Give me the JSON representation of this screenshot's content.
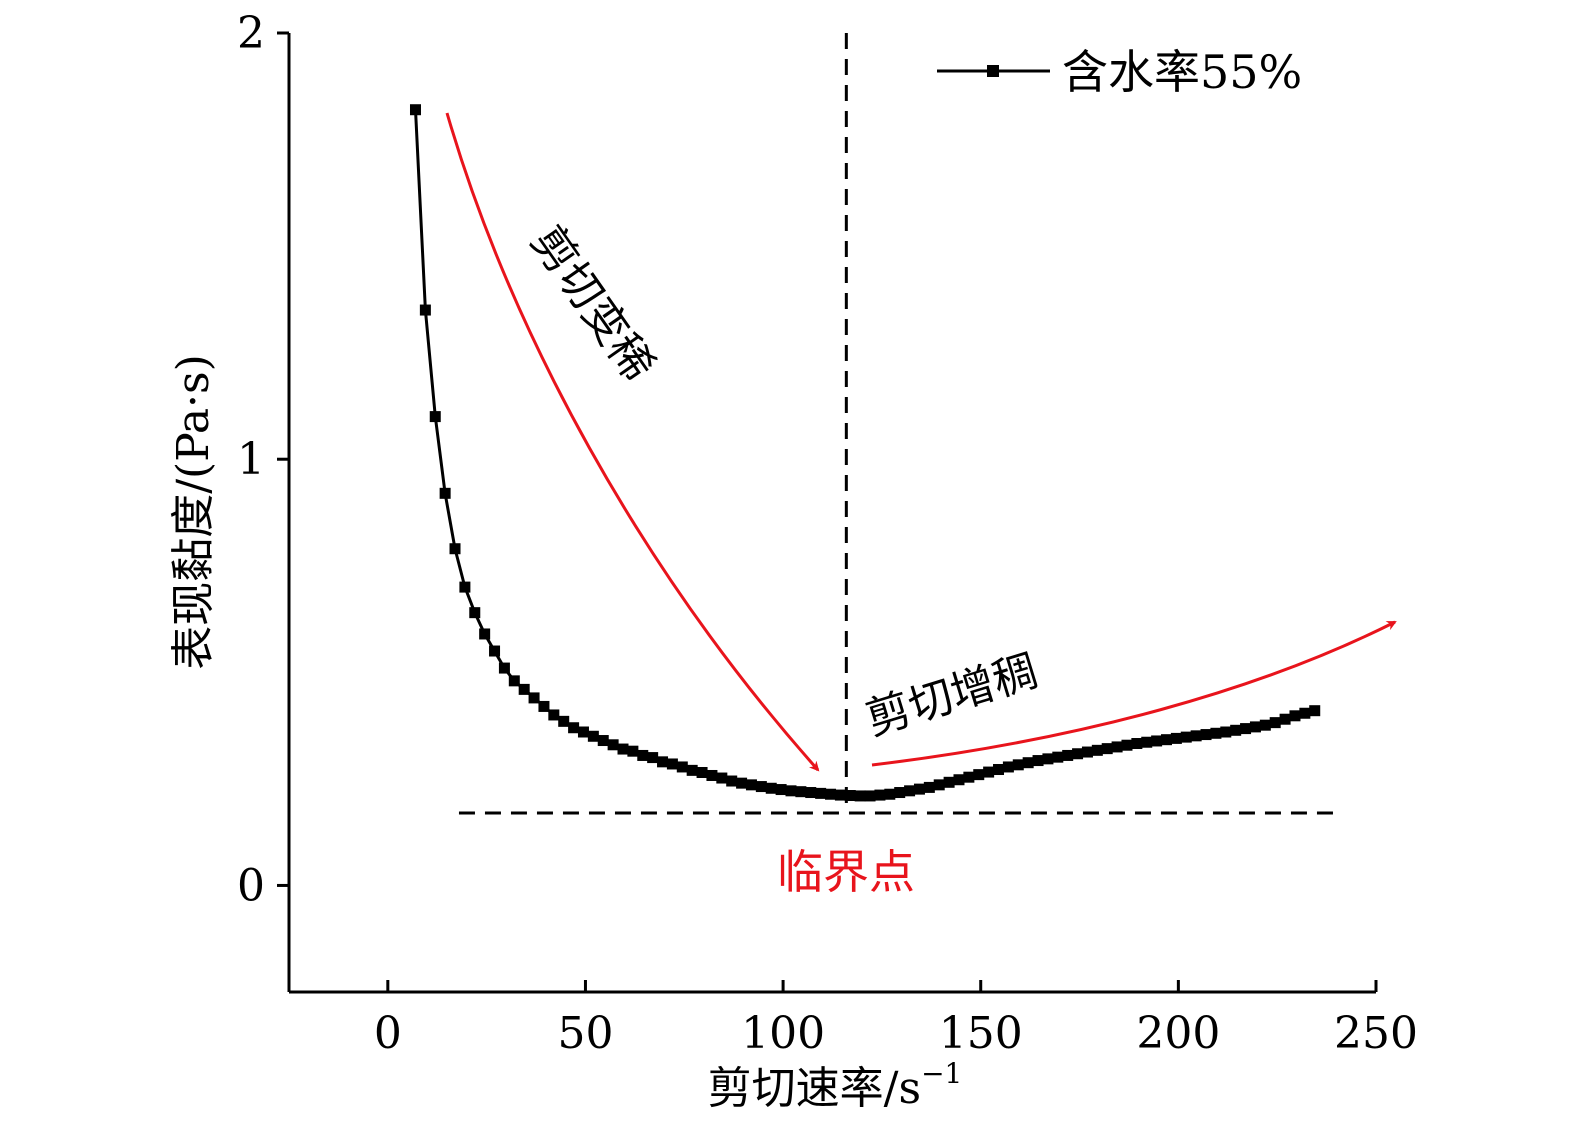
{
  "chart_data": {
    "type": "line",
    "xlabel": "剪切速率/s",
    "xlabel_sup": "−1",
    "ylabel": "表现黏度/(Pa·s)",
    "xlim": [
      -25,
      250
    ],
    "ylim": [
      -0.25,
      2
    ],
    "x_ticks": [
      0,
      50,
      100,
      150,
      200,
      250
    ],
    "y_ticks": [
      0,
      1,
      2
    ],
    "x_tick_labels": [
      "0",
      "50",
      "100",
      "150",
      "200",
      "250"
    ],
    "y_tick_labels": [
      "0",
      "1",
      "2"
    ],
    "legend": {
      "placement": "top-right",
      "entries": [
        "含水率55%"
      ]
    },
    "series": [
      {
        "name": "含水率55%",
        "color": "#000000",
        "marker": "square",
        "x": [
          7,
          9.5,
          12,
          14.5,
          17,
          19.5,
          22,
          24.5,
          27,
          29.5,
          32,
          34.5,
          37,
          39.5,
          42,
          44.5,
          47,
          49.5,
          52,
          54.5,
          57,
          59.5,
          62,
          64.5,
          67,
          69.5,
          72,
          74.5,
          77,
          79.5,
          82,
          84.5,
          87,
          89.5,
          92,
          94.5,
          97,
          99.5,
          102,
          104.5,
          107,
          109.5,
          112,
          114.5,
          117,
          119.5,
          122,
          124.5,
          127,
          129.5,
          132,
          134.5,
          137,
          139.5,
          142,
          144.5,
          147,
          149.5,
          152,
          154.5,
          157,
          159.5,
          162,
          164.5,
          167,
          169.5,
          172,
          174.5,
          177,
          179.5,
          182,
          184.5,
          187,
          189.5,
          192,
          194.5,
          197,
          199.5,
          202,
          204.5,
          207,
          209.5,
          212,
          214.5,
          217,
          219.5,
          222,
          224.5,
          227,
          229.5,
          232,
          234.5
        ],
        "y": [
          1.82,
          1.35,
          1.1,
          0.92,
          0.79,
          0.7,
          0.64,
          0.59,
          0.55,
          0.51,
          0.48,
          0.46,
          0.44,
          0.42,
          0.4,
          0.385,
          0.37,
          0.36,
          0.35,
          0.34,
          0.33,
          0.32,
          0.315,
          0.305,
          0.3,
          0.29,
          0.285,
          0.278,
          0.27,
          0.265,
          0.258,
          0.252,
          0.245,
          0.24,
          0.236,
          0.232,
          0.228,
          0.225,
          0.222,
          0.22,
          0.218,
          0.216,
          0.214,
          0.212,
          0.211,
          0.21,
          0.21,
          0.212,
          0.214,
          0.218,
          0.222,
          0.226,
          0.23,
          0.236,
          0.242,
          0.248,
          0.254,
          0.26,
          0.266,
          0.272,
          0.278,
          0.283,
          0.288,
          0.293,
          0.297,
          0.301,
          0.305,
          0.309,
          0.313,
          0.317,
          0.321,
          0.325,
          0.329,
          0.333,
          0.336,
          0.339,
          0.342,
          0.345,
          0.348,
          0.351,
          0.354,
          0.357,
          0.36,
          0.364,
          0.368,
          0.372,
          0.376,
          0.382,
          0.39,
          0.398,
          0.404,
          0.41
        ]
      }
    ],
    "reference_lines": {
      "vertical_x": 116,
      "horizontal_y": 0.17,
      "horizontal_x_range": [
        18,
        240
      ]
    },
    "annotations": {
      "shear_thinning": "剪切变稀",
      "shear_thickening": "剪切增稠",
      "critical_point": "临界点"
    },
    "arrow_color": "#e8141c"
  }
}
